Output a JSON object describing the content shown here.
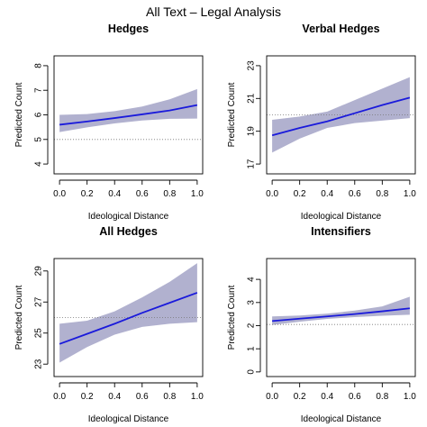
{
  "figure": {
    "title": "All Text – Legal Analysis"
  },
  "colors": {
    "band": "#b1b1cf",
    "line": "#1a1adb",
    "reference": "#777777"
  },
  "chart_data": [
    {
      "type": "line",
      "title": "Hedges",
      "xlabel": "Ideological Distance",
      "ylabel": "Predicted Count",
      "xlim": [
        -0.04,
        1.04
      ],
      "ylim": [
        3.6,
        8.4
      ],
      "xticks": [
        0,
        0.2,
        0.4,
        0.6,
        0.8,
        1
      ],
      "xtick_labels": [
        "0.0",
        "0.2",
        "0.4",
        "0.6",
        "0.8",
        "1.0"
      ],
      "yticks": [
        4,
        5,
        6,
        7,
        8
      ],
      "ytick_labels": [
        "4",
        "5",
        "6",
        "7",
        "8"
      ],
      "x": [
        0,
        0.2,
        0.4,
        0.6,
        0.8,
        1
      ],
      "estimate": [
        5.6,
        5.73,
        5.87,
        6.02,
        6.18,
        6.4
      ],
      "lower": [
        5.3,
        5.49,
        5.65,
        5.77,
        5.84,
        5.85
      ],
      "upper": [
        6.0,
        6.03,
        6.15,
        6.34,
        6.63,
        7.05
      ],
      "reference": 5.0
    },
    {
      "type": "line",
      "title": "Verbal Hedges",
      "xlabel": "Ideological Distance",
      "ylabel": "Predicted Count",
      "xlim": [
        -0.04,
        1.04
      ],
      "ylim": [
        16.4,
        23.6
      ],
      "xticks": [
        0,
        0.2,
        0.4,
        0.6,
        0.8,
        1
      ],
      "xtick_labels": [
        "0.0",
        "0.2",
        "0.4",
        "0.6",
        "0.8",
        "1.0"
      ],
      "yticks": [
        17,
        19,
        21,
        23
      ],
      "ytick_labels": [
        "17",
        "19",
        "21",
        "23"
      ],
      "x": [
        0,
        0.2,
        0.4,
        0.6,
        0.8,
        1
      ],
      "estimate": [
        18.75,
        19.2,
        19.6,
        20.1,
        20.6,
        21.05
      ],
      "lower": [
        17.7,
        18.55,
        19.2,
        19.5,
        19.65,
        19.8
      ],
      "upper": [
        19.7,
        19.9,
        20.2,
        20.9,
        21.6,
        22.3
      ],
      "reference": 20.0
    },
    {
      "type": "line",
      "title": "All Hedges",
      "xlabel": "Ideological Distance",
      "ylabel": "Predicted Count",
      "xlim": [
        -0.04,
        1.04
      ],
      "ylim": [
        22.2,
        29.8
      ],
      "xticks": [
        0,
        0.2,
        0.4,
        0.6,
        0.8,
        1
      ],
      "xtick_labels": [
        "0.0",
        "0.2",
        "0.4",
        "0.6",
        "0.8",
        "1.0"
      ],
      "yticks": [
        23,
        25,
        27,
        29
      ],
      "ytick_labels": [
        "23",
        "25",
        "27",
        "29"
      ],
      "x": [
        0,
        0.2,
        0.4,
        0.6,
        0.8,
        1
      ],
      "estimate": [
        24.3,
        24.95,
        25.6,
        26.3,
        26.95,
        27.6
      ],
      "lower": [
        23.1,
        24.1,
        24.9,
        25.4,
        25.6,
        25.7
      ],
      "upper": [
        25.6,
        25.8,
        26.4,
        27.3,
        28.3,
        29.5
      ],
      "reference": 26.0
    },
    {
      "type": "line",
      "title": "Intensifiers",
      "xlabel": "Ideological Distance",
      "ylabel": "Predicted Count",
      "xlim": [
        -0.04,
        1.04
      ],
      "ylim": [
        -0.2,
        4.9
      ],
      "xticks": [
        0,
        0.2,
        0.4,
        0.6,
        0.8,
        1
      ],
      "xtick_labels": [
        "0.0",
        "0.2",
        "0.4",
        "0.6",
        "0.8",
        "1.0"
      ],
      "yticks": [
        0,
        1,
        2,
        3,
        4
      ],
      "ytick_labels": [
        "0",
        "1",
        "2",
        "3",
        "4"
      ],
      "x": [
        0,
        0.2,
        0.4,
        0.6,
        0.8,
        1
      ],
      "estimate": [
        2.2,
        2.3,
        2.4,
        2.5,
        2.62,
        2.75
      ],
      "lower": [
        2.03,
        2.17,
        2.29,
        2.37,
        2.43,
        2.47
      ],
      "upper": [
        2.4,
        2.44,
        2.52,
        2.65,
        2.83,
        3.25
      ],
      "reference": 2.05
    }
  ]
}
